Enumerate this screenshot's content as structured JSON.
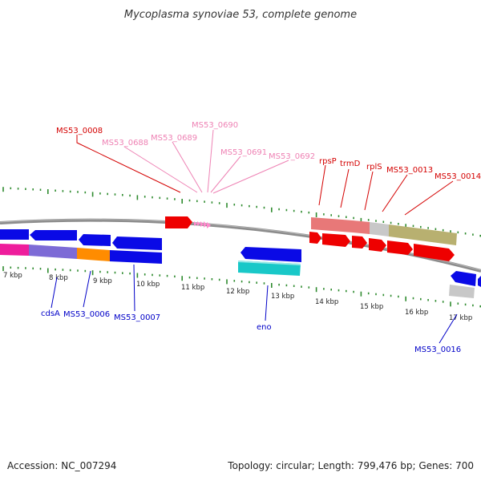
{
  "title": "Mycoplasma synoviae 53, complete genome",
  "footer": {
    "accession": "Accession: NC_007294",
    "topology": "Topology: circular; Length: 799,476 bp; Genes: 700"
  },
  "colors": {
    "backbone": "#8c8c8c",
    "tick": "#2e8b2e",
    "label_red": "#d40000",
    "label_pink": "#ee82b4",
    "label_blue": "#0000c8",
    "gene_blue": "#0a0ae6",
    "gene_red": "#ee0000",
    "gene_pink_arrow": "#ff88cc",
    "gene_magenta": "#ee1d9c",
    "gene_purple": "#7d6bd6",
    "gene_orange": "#ff8c00",
    "gene_cyan": "#19c8c8",
    "gene_salmon": "#e87878",
    "gene_gray": "#c8c8c8",
    "gene_khaki": "#b8b070"
  },
  "kbp_labels": [
    "7 kbp",
    "8 kbp",
    "9 kbp",
    "10 kbp",
    "11 kbp",
    "12 kbp",
    "13 kbp",
    "14 kbp",
    "15 kbp",
    "16 kbp",
    "17 kbp"
  ],
  "labels_top_red": [
    "MS53_0008",
    "rpsP",
    "trmD",
    "rplS",
    "MS53_0013",
    "MS53_0014"
  ],
  "labels_top_pink": [
    "MS53_0688",
    "MS53_0689",
    "MS53_0690",
    "MS53_0691",
    "MS53_0692"
  ],
  "labels_bottom_blue": [
    "cdsA",
    "MS53_0006",
    "MS53_0007",
    "eno",
    "MS53_0016"
  ]
}
